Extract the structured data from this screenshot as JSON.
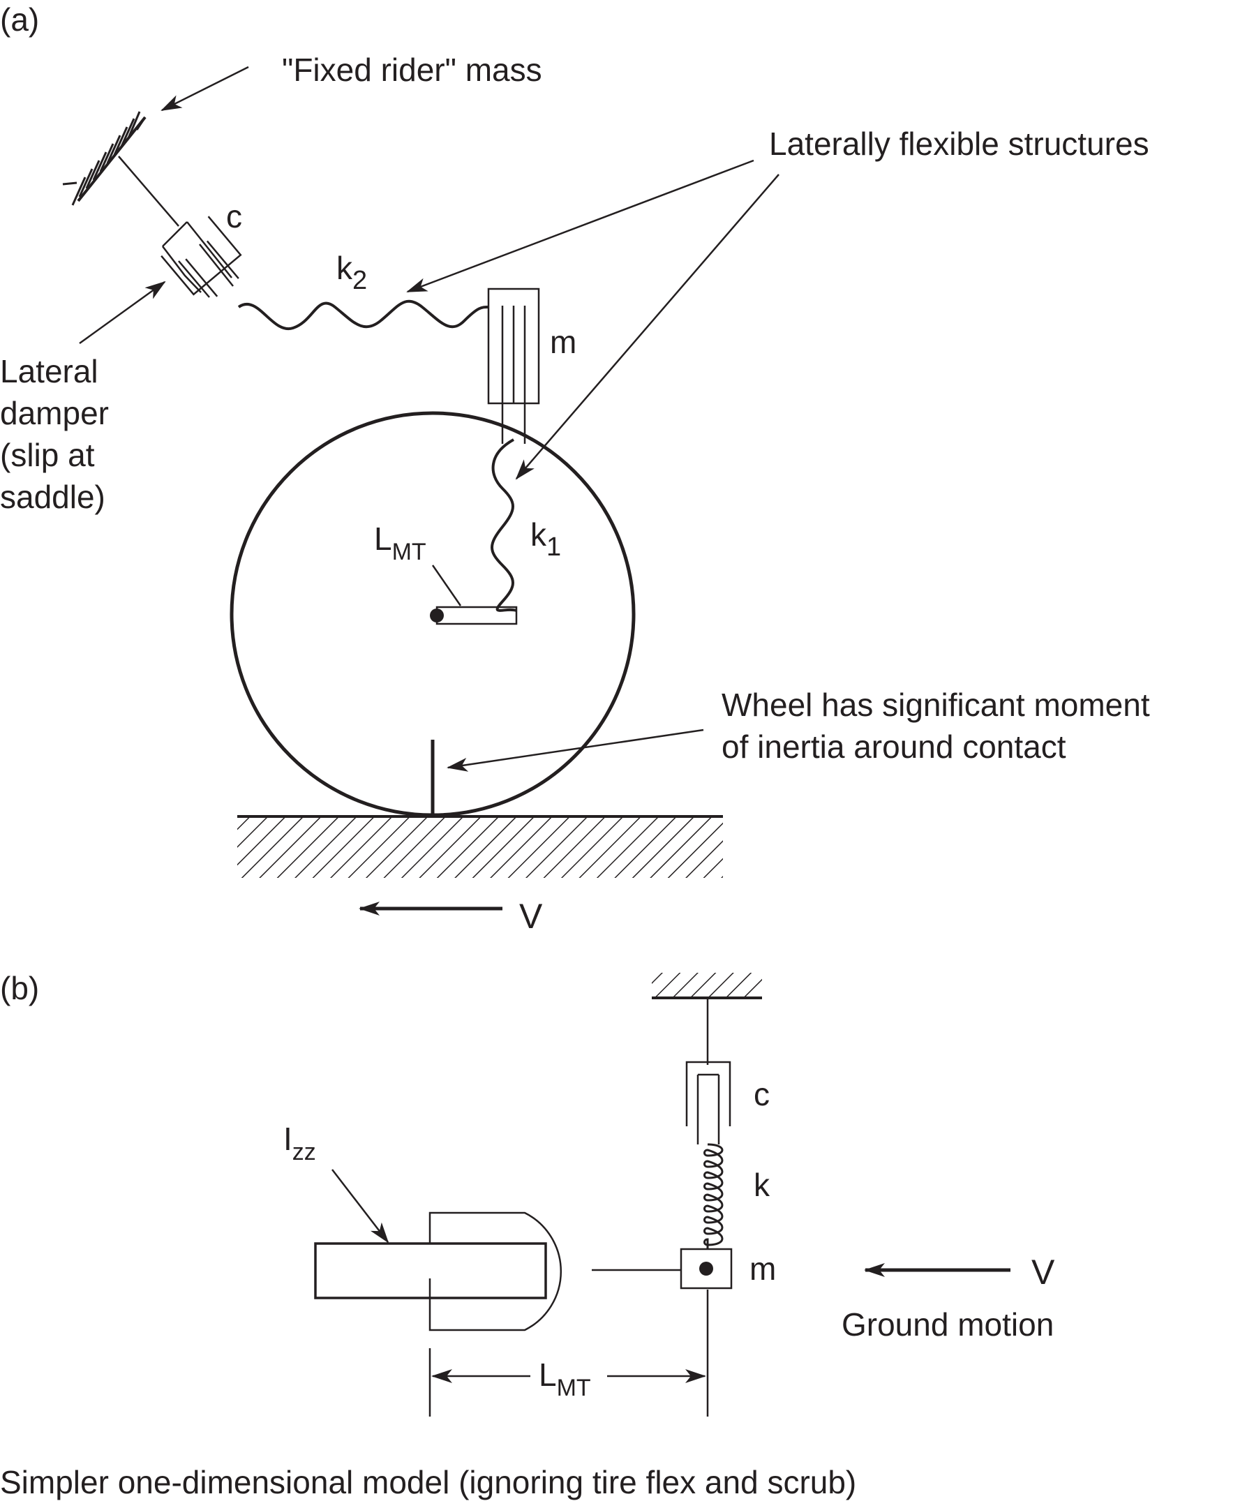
{
  "panel_a": {
    "panel_label": "(a)",
    "fixed_rider_label": "\"Fixed rider\" mass",
    "flexible_label": "Laterally flexible structures",
    "damper_symbol": "c",
    "k2_base": "k",
    "k2_sub": "2",
    "mass_symbol": "m",
    "damper_label_lines": [
      "Lateral",
      "damper",
      "(slip at",
      "saddle)"
    ],
    "k1_base": "k",
    "k1_sub": "1",
    "lmt_base": "L",
    "lmt_sub": "MT",
    "inertia_label_lines": [
      "Wheel has significant moment",
      "of inertia around contact"
    ],
    "velocity_symbol": "V"
  },
  "panel_b": {
    "panel_label": "(b)",
    "damper_symbol": "c",
    "spring_symbol": "k",
    "mass_symbol": "m",
    "izz_base": "I",
    "izz_sub": "zz",
    "velocity_symbol": "V",
    "ground_motion_label": "Ground motion",
    "lmt_base": "L",
    "lmt_sub": "MT"
  },
  "caption": "Simpler one-dimensional model (ignoring tire flex and scrub)",
  "colors": {
    "ink": "#231f20",
    "background": "#ffffff"
  }
}
